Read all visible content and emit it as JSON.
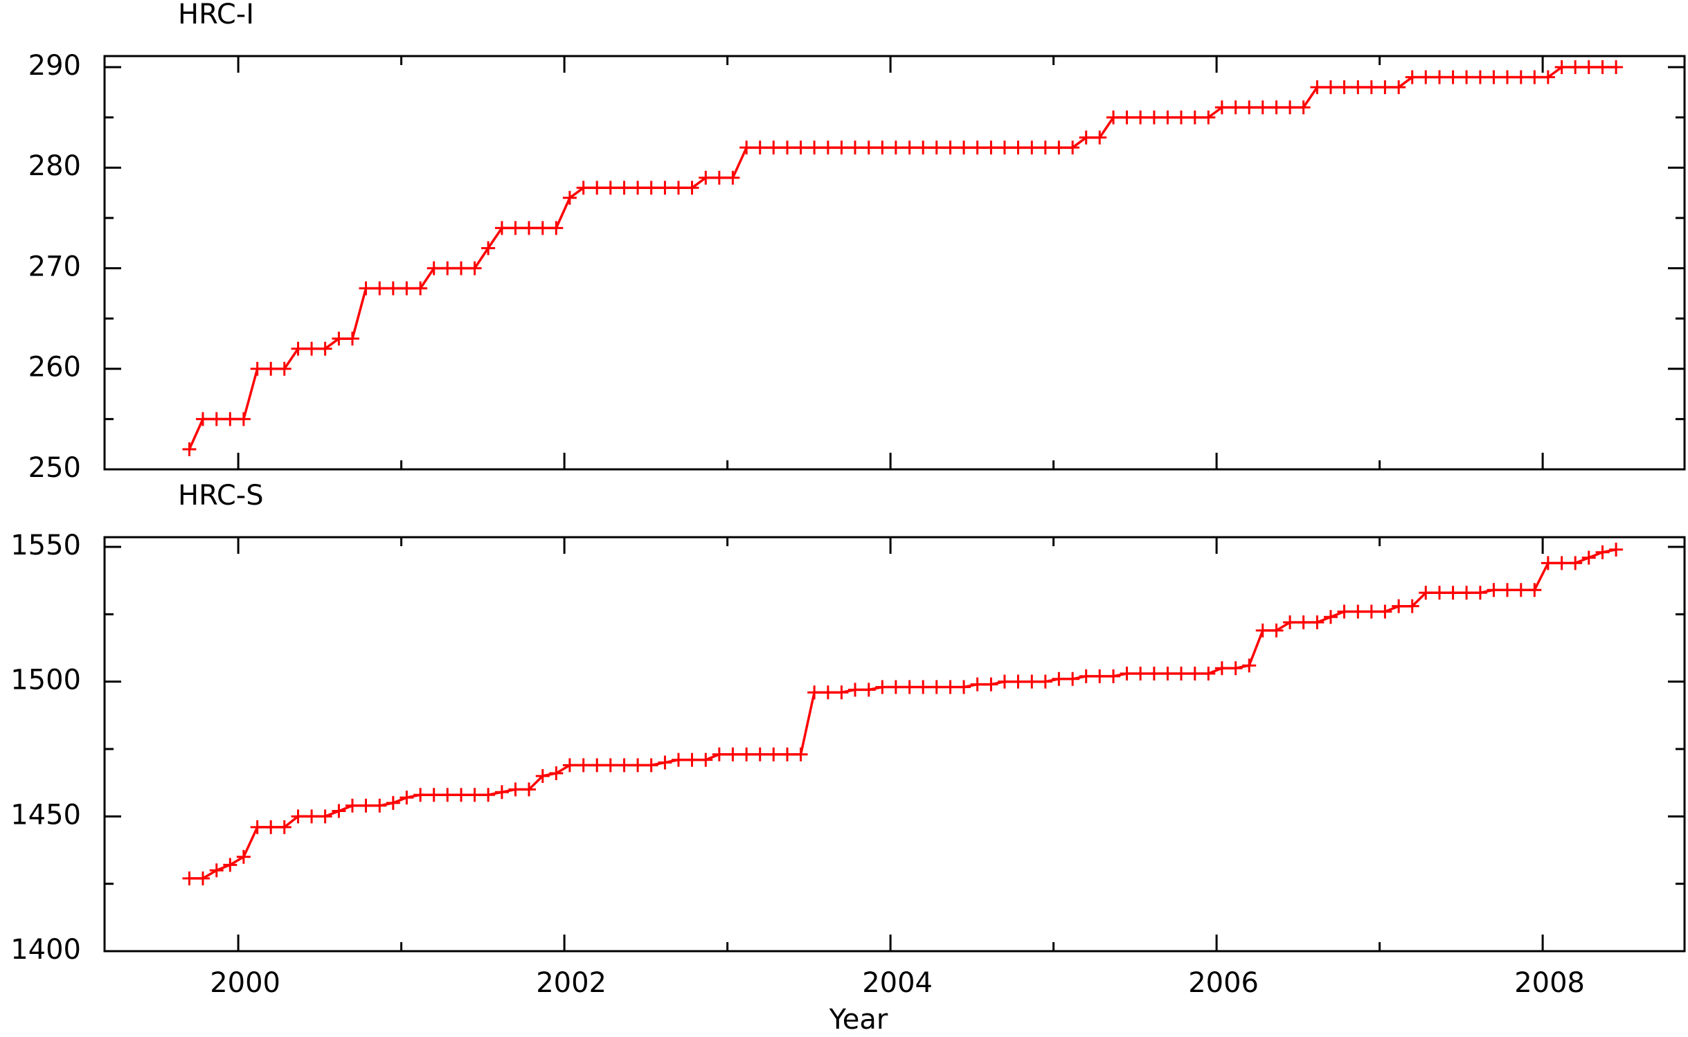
{
  "chart_data": [
    {
      "type": "line",
      "title": "HRC-I",
      "color": "#ff0000",
      "marker": "+",
      "xlim": [
        1999.18,
        2008.87
      ],
      "xticks": [
        2000,
        2002,
        2004,
        2006,
        2008
      ],
      "xminorticks": [
        2001,
        2003,
        2005,
        2007
      ],
      "xtick_labels": false,
      "ylim": [
        250,
        291.1
      ],
      "yticks": [
        250,
        260,
        270,
        280,
        290
      ],
      "yminorticks": [
        255,
        265,
        275,
        285
      ],
      "x": [
        1999.7,
        1999.783,
        1999.867,
        1999.95,
        2000.033,
        2000.117,
        2000.2,
        2000.283,
        2000.367,
        2000.45,
        2000.533,
        2000.617,
        2000.7,
        2000.783,
        2000.867,
        2000.95,
        2001.033,
        2001.117,
        2001.2,
        2001.283,
        2001.367,
        2001.45,
        2001.533,
        2001.617,
        2001.7,
        2001.783,
        2001.867,
        2001.95,
        2002.033,
        2002.117,
        2002.2,
        2002.283,
        2002.367,
        2002.45,
        2002.533,
        2002.617,
        2002.7,
        2002.783,
        2002.867,
        2002.95,
        2003.033,
        2003.117,
        2003.2,
        2003.283,
        2003.367,
        2003.45,
        2003.533,
        2003.617,
        2003.7,
        2003.783,
        2003.867,
        2003.95,
        2004.033,
        2004.117,
        2004.2,
        2004.283,
        2004.367,
        2004.45,
        2004.533,
        2004.617,
        2004.7,
        2004.783,
        2004.867,
        2004.95,
        2005.033,
        2005.117,
        2005.2,
        2005.283,
        2005.367,
        2005.45,
        2005.533,
        2005.617,
        2005.7,
        2005.783,
        2005.867,
        2005.95,
        2006.033,
        2006.117,
        2006.2,
        2006.283,
        2006.367,
        2006.45,
        2006.533,
        2006.617,
        2006.7,
        2006.783,
        2006.867,
        2006.95,
        2007.033,
        2007.117,
        2007.2,
        2007.283,
        2007.367,
        2007.45,
        2007.533,
        2007.617,
        2007.7,
        2007.783,
        2007.867,
        2007.95,
        2008.033,
        2008.117,
        2008.2,
        2008.283,
        2008.367,
        2008.45
      ],
      "values": [
        252,
        255,
        255,
        255,
        255,
        260,
        260,
        260,
        262,
        262,
        262,
        263,
        263,
        268,
        268,
        268,
        268,
        268,
        270,
        270,
        270,
        270,
        272,
        274,
        274,
        274,
        274,
        274,
        277,
        278,
        278,
        278,
        278,
        278,
        278,
        278,
        278,
        278,
        279,
        279,
        279,
        282,
        282,
        282,
        282,
        282,
        282,
        282,
        282,
        282,
        282,
        282,
        282,
        282,
        282,
        282,
        282,
        282,
        282,
        282,
        282,
        282,
        282,
        282,
        282,
        282,
        283,
        283,
        285,
        285,
        285,
        285,
        285,
        285,
        285,
        285,
        286,
        286,
        286,
        286,
        286,
        286,
        286,
        288,
        288,
        288,
        288,
        288,
        288,
        288,
        289,
        289,
        289,
        289,
        289,
        289,
        289,
        289,
        289,
        289,
        289,
        290,
        290,
        290,
        290,
        290
      ]
    },
    {
      "type": "line",
      "title": "HRC-S",
      "xlabel": "Year",
      "color": "#ff0000",
      "marker": "+",
      "xlim": [
        1999.18,
        2008.87
      ],
      "xticks": [
        2000,
        2002,
        2004,
        2006,
        2008
      ],
      "xminorticks": [
        2001,
        2003,
        2005,
        2007
      ],
      "xtick_labels": true,
      "ylim": [
        1400,
        1553.6
      ],
      "yticks": [
        1400,
        1450,
        1500,
        1550
      ],
      "yminorticks": [
        1425,
        1475,
        1525
      ],
      "x": [
        1999.7,
        1999.783,
        1999.867,
        1999.95,
        2000.033,
        2000.117,
        2000.2,
        2000.283,
        2000.367,
        2000.45,
        2000.533,
        2000.617,
        2000.7,
        2000.783,
        2000.867,
        2000.95,
        2001.033,
        2001.117,
        2001.2,
        2001.283,
        2001.367,
        2001.45,
        2001.533,
        2001.617,
        2001.7,
        2001.783,
        2001.867,
        2001.95,
        2002.033,
        2002.117,
        2002.2,
        2002.283,
        2002.367,
        2002.45,
        2002.533,
        2002.617,
        2002.7,
        2002.783,
        2002.867,
        2002.95,
        2003.033,
        2003.117,
        2003.2,
        2003.283,
        2003.367,
        2003.45,
        2003.533,
        2003.617,
        2003.7,
        2003.783,
        2003.867,
        2003.95,
        2004.033,
        2004.117,
        2004.2,
        2004.283,
        2004.367,
        2004.45,
        2004.533,
        2004.617,
        2004.7,
        2004.783,
        2004.867,
        2004.95,
        2005.033,
        2005.117,
        2005.2,
        2005.283,
        2005.367,
        2005.45,
        2005.533,
        2005.617,
        2005.7,
        2005.783,
        2005.867,
        2005.95,
        2006.033,
        2006.117,
        2006.2,
        2006.283,
        2006.367,
        2006.45,
        2006.533,
        2006.617,
        2006.7,
        2006.783,
        2006.867,
        2006.95,
        2007.033,
        2007.117,
        2007.2,
        2007.283,
        2007.367,
        2007.45,
        2007.533,
        2007.617,
        2007.7,
        2007.783,
        2007.867,
        2007.95,
        2008.033,
        2008.117,
        2008.2,
        2008.283,
        2008.367,
        2008.45
      ],
      "values": [
        1427,
        1427,
        1430,
        1432,
        1435,
        1446,
        1446,
        1446,
        1450,
        1450,
        1450,
        1452,
        1454,
        1454,
        1454,
        1455,
        1457,
        1458,
        1458,
        1458,
        1458,
        1458,
        1458,
        1459,
        1460,
        1460,
        1465,
        1466,
        1469,
        1469,
        1469,
        1469,
        1469,
        1469,
        1469,
        1470,
        1471,
        1471,
        1471,
        1473,
        1473,
        1473,
        1473,
        1473,
        1473,
        1473,
        1496,
        1496,
        1496,
        1497,
        1497,
        1498,
        1498,
        1498,
        1498,
        1498,
        1498,
        1498,
        1499,
        1499,
        1500,
        1500,
        1500,
        1500,
        1501,
        1501,
        1502,
        1502,
        1502,
        1503,
        1503,
        1503,
        1503,
        1503,
        1503,
        1503,
        1505,
        1505,
        1506,
        1519,
        1519,
        1522,
        1522,
        1522,
        1524,
        1526,
        1526,
        1526,
        1526,
        1528,
        1528,
        1533,
        1533,
        1533,
        1533,
        1533,
        1534,
        1534,
        1534,
        1534,
        1544,
        1544,
        1544,
        1546,
        1548,
        1549
      ]
    }
  ]
}
